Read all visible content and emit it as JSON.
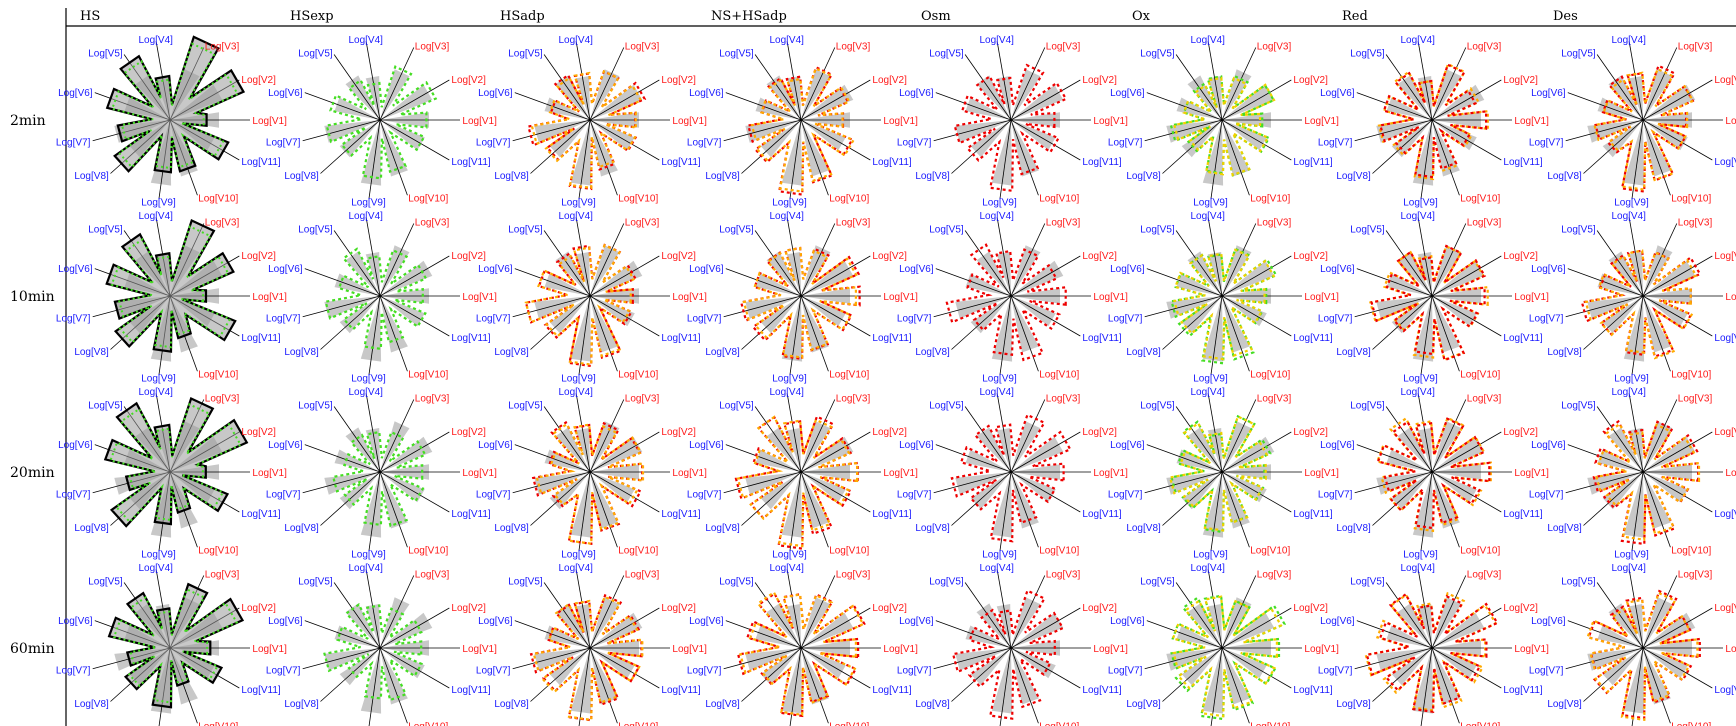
{
  "colors": {
    "petal_fill": "#c8c8c8",
    "axis_line": "#000000",
    "blue_label": "#1a1aff",
    "red_label": "#ff1a1a",
    "series_black": "#000000",
    "series_green": "#44dd22",
    "series_red": "#ee0000",
    "series_orange": "#ffaa00",
    "series_yellow": "#f0d000"
  },
  "chart_data": {
    "type": "radar",
    "layout": "small-multiples grid",
    "column_headers": [
      "HS",
      "HSexp",
      "HSadp",
      "NS+HSadp",
      "Osm",
      "Ox",
      "Red",
      "Des"
    ],
    "row_headers": [
      "2min",
      "10min",
      "20min",
      "60min"
    ],
    "axes": [
      {
        "label": "Log[V1]",
        "color": "red"
      },
      {
        "label": "Log[V2]",
        "color": "red"
      },
      {
        "label": "Log[V3]",
        "color": "red"
      },
      {
        "label": "Log[V4]",
        "color": "blue"
      },
      {
        "label": "Log[V5]",
        "color": "blue"
      },
      {
        "label": "Log[V6]",
        "color": "blue"
      },
      {
        "label": "Log[V7]",
        "color": "blue"
      },
      {
        "label": "Log[V8]",
        "color": "blue"
      },
      {
        "label": "Log[V9]",
        "color": "blue"
      },
      {
        "label": "Log[V10]",
        "color": "red"
      },
      {
        "label": "Log[V11]",
        "color": "blue"
      }
    ],
    "axis_angles_deg": [
      0,
      30,
      65,
      100,
      125,
      160,
      195,
      222,
      262,
      290,
      330
    ],
    "reference_values": [
      0.62,
      0.7,
      0.66,
      0.55,
      0.62,
      0.58,
      0.7,
      0.6,
      0.82,
      0.72,
      0.6
    ],
    "column_series": [
      {
        "color": "black",
        "solid": true,
        "thick": true,
        "scale": [
          1.05,
          1.1,
          1.05,
          1.0
        ],
        "hs": [
          0.45,
          0.9,
          0.95,
          0.5,
          0.8,
          0.85,
          0.6,
          0.75,
          0.7,
          0.55,
          0.8
        ]
      },
      {
        "color": "green",
        "solid": false,
        "scale": [
          0.95,
          0.92,
          0.9,
          0.9
        ]
      },
      {
        "color": "red_orange",
        "solid": false,
        "scale": [
          1.0,
          1.02,
          1.0,
          1.02
        ]
      },
      {
        "color": "red_orange",
        "solid": false,
        "scale": [
          1.0,
          1.05,
          1.08,
          1.12
        ]
      },
      {
        "color": "red",
        "solid": false,
        "scale": [
          0.98,
          1.02,
          1.0,
          1.0
        ]
      },
      {
        "color": "green_yellow",
        "solid": false,
        "scale": [
          0.95,
          0.98,
          1.0,
          1.05
        ]
      },
      {
        "color": "orange_red",
        "solid": false,
        "scale": [
          1.0,
          1.02,
          1.05,
          1.08
        ]
      },
      {
        "color": "red_orange",
        "solid": false,
        "scale": [
          0.95,
          1.0,
          1.02,
          1.05
        ]
      }
    ]
  }
}
